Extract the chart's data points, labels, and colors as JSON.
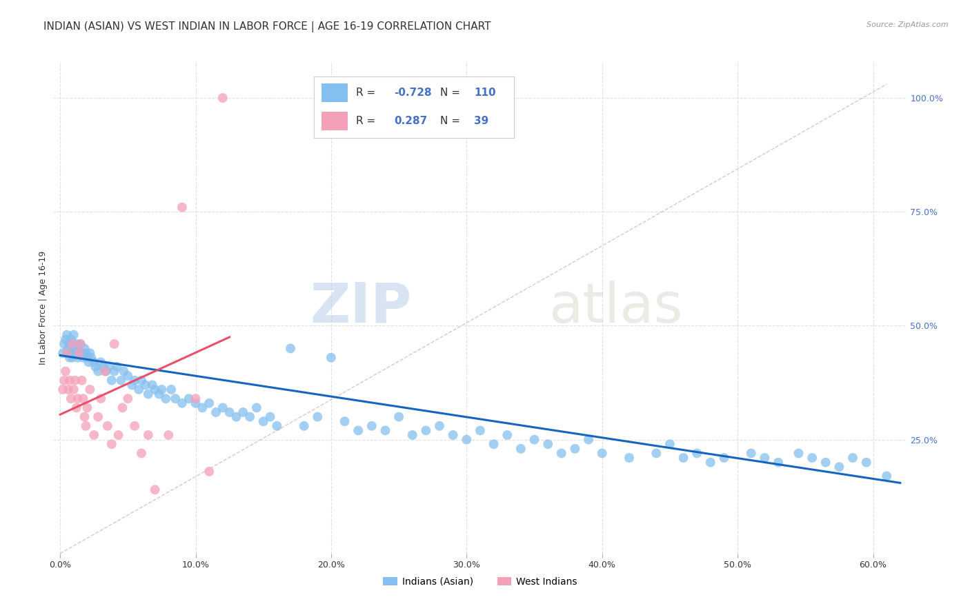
{
  "title": "INDIAN (ASIAN) VS WEST INDIAN IN LABOR FORCE | AGE 16-19 CORRELATION CHART",
  "source": "Source: ZipAtlas.com",
  "xlabel_ticks": [
    "0.0%",
    "10.0%",
    "20.0%",
    "30.0%",
    "40.0%",
    "50.0%",
    "60.0%"
  ],
  "xlabel_vals": [
    0.0,
    0.1,
    0.2,
    0.3,
    0.4,
    0.5,
    0.6
  ],
  "ylabel": "In Labor Force | Age 16-19",
  "ylabel_right_ticks": [
    "100.0%",
    "75.0%",
    "50.0%",
    "25.0%"
  ],
  "ylabel_right_vals": [
    1.0,
    0.75,
    0.5,
    0.25
  ],
  "xlim": [
    -0.005,
    0.625
  ],
  "ylim": [
    0.0,
    1.08
  ],
  "blue_R": -0.728,
  "blue_N": 110,
  "pink_R": 0.287,
  "pink_N": 39,
  "blue_color": "#85bfee",
  "pink_color": "#f4a0b8",
  "blue_line_color": "#1565c0",
  "pink_line_color": "#e8506a",
  "diag_line_color": "#d8a0b0",
  "legend_label_blue": "Indians (Asian)",
  "legend_label_pink": "West Indians",
  "watermark_zip": "ZIP",
  "watermark_atlas": "atlas",
  "grid_color": "#e0e0e0",
  "background_color": "#ffffff",
  "title_fontsize": 11,
  "axis_fontsize": 9,
  "blue_scatter_x": [
    0.002,
    0.003,
    0.004,
    0.005,
    0.005,
    0.006,
    0.007,
    0.007,
    0.008,
    0.008,
    0.009,
    0.009,
    0.01,
    0.01,
    0.011,
    0.012,
    0.013,
    0.013,
    0.014,
    0.015,
    0.016,
    0.017,
    0.018,
    0.019,
    0.02,
    0.021,
    0.022,
    0.023,
    0.025,
    0.026,
    0.028,
    0.03,
    0.032,
    0.034,
    0.036,
    0.038,
    0.04,
    0.042,
    0.045,
    0.047,
    0.05,
    0.053,
    0.055,
    0.058,
    0.06,
    0.063,
    0.065,
    0.068,
    0.07,
    0.073,
    0.075,
    0.078,
    0.082,
    0.085,
    0.09,
    0.095,
    0.1,
    0.105,
    0.11,
    0.115,
    0.12,
    0.125,
    0.13,
    0.135,
    0.14,
    0.145,
    0.15,
    0.155,
    0.16,
    0.17,
    0.18,
    0.19,
    0.2,
    0.21,
    0.22,
    0.23,
    0.24,
    0.25,
    0.26,
    0.27,
    0.28,
    0.29,
    0.3,
    0.31,
    0.32,
    0.33,
    0.34,
    0.35,
    0.36,
    0.37,
    0.38,
    0.39,
    0.4,
    0.42,
    0.44,
    0.45,
    0.46,
    0.47,
    0.48,
    0.49,
    0.51,
    0.52,
    0.53,
    0.545,
    0.555,
    0.565,
    0.575,
    0.585,
    0.595,
    0.61
  ],
  "blue_scatter_y": [
    0.44,
    0.46,
    0.47,
    0.44,
    0.48,
    0.45,
    0.46,
    0.43,
    0.47,
    0.44,
    0.46,
    0.43,
    0.45,
    0.48,
    0.44,
    0.46,
    0.45,
    0.43,
    0.44,
    0.46,
    0.44,
    0.43,
    0.45,
    0.44,
    0.43,
    0.42,
    0.44,
    0.43,
    0.42,
    0.41,
    0.4,
    0.42,
    0.41,
    0.4,
    0.41,
    0.38,
    0.4,
    0.41,
    0.38,
    0.4,
    0.39,
    0.37,
    0.38,
    0.36,
    0.38,
    0.37,
    0.35,
    0.37,
    0.36,
    0.35,
    0.36,
    0.34,
    0.36,
    0.34,
    0.33,
    0.34,
    0.33,
    0.32,
    0.33,
    0.31,
    0.32,
    0.31,
    0.3,
    0.31,
    0.3,
    0.32,
    0.29,
    0.3,
    0.28,
    0.45,
    0.28,
    0.3,
    0.43,
    0.29,
    0.27,
    0.28,
    0.27,
    0.3,
    0.26,
    0.27,
    0.28,
    0.26,
    0.25,
    0.27,
    0.24,
    0.26,
    0.23,
    0.25,
    0.24,
    0.22,
    0.23,
    0.25,
    0.22,
    0.21,
    0.22,
    0.24,
    0.21,
    0.22,
    0.2,
    0.21,
    0.22,
    0.21,
    0.2,
    0.22,
    0.21,
    0.2,
    0.19,
    0.21,
    0.2,
    0.17
  ],
  "pink_scatter_x": [
    0.002,
    0.003,
    0.004,
    0.005,
    0.006,
    0.007,
    0.008,
    0.009,
    0.01,
    0.011,
    0.012,
    0.013,
    0.014,
    0.015,
    0.016,
    0.017,
    0.018,
    0.019,
    0.02,
    0.022,
    0.025,
    0.028,
    0.03,
    0.033,
    0.035,
    0.038,
    0.04,
    0.043,
    0.046,
    0.05,
    0.055,
    0.06,
    0.065,
    0.07,
    0.08,
    0.09,
    0.1,
    0.11,
    0.12
  ],
  "pink_scatter_y": [
    0.36,
    0.38,
    0.4,
    0.44,
    0.36,
    0.38,
    0.34,
    0.46,
    0.36,
    0.38,
    0.32,
    0.34,
    0.44,
    0.46,
    0.38,
    0.34,
    0.3,
    0.28,
    0.32,
    0.36,
    0.26,
    0.3,
    0.34,
    0.4,
    0.28,
    0.24,
    0.46,
    0.26,
    0.32,
    0.34,
    0.28,
    0.22,
    0.26,
    0.14,
    0.26,
    0.76,
    0.34,
    0.18,
    1.0
  ],
  "blue_trend_x": [
    0.0,
    0.62
  ],
  "blue_trend_y": [
    0.435,
    0.155
  ],
  "pink_trend_x": [
    0.0,
    0.125
  ],
  "pink_trend_y": [
    0.305,
    0.475
  ]
}
